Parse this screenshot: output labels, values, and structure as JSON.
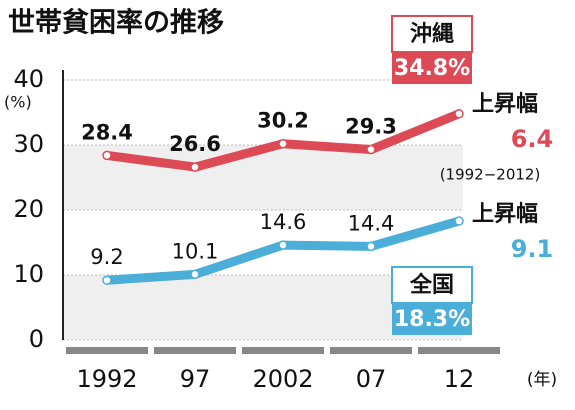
{
  "chart_data": {
    "type": "line",
    "title": "世帯貧困率の推移",
    "y_label": "(%)",
    "x_label": "(年)",
    "categories": [
      "1992",
      "97",
      "2002",
      "07",
      "12"
    ],
    "ylim": [
      0,
      40
    ],
    "yticks": [
      0,
      10,
      20,
      30,
      40
    ],
    "grid": true,
    "series": [
      {
        "name": "沖縄",
        "color": "#dc4b55",
        "values": [
          28.4,
          26.6,
          30.2,
          29.3,
          34.8
        ],
        "value_labels": [
          "28.4",
          "26.6",
          "30.2",
          "29.3",
          "34.8%"
        ]
      },
      {
        "name": "全国",
        "color": "#4aaed8",
        "values": [
          9.2,
          10.1,
          14.6,
          14.4,
          18.3
        ],
        "value_labels": [
          "9.2",
          "10.1",
          "14.6",
          "14.4",
          "18.3%"
        ]
      }
    ],
    "annotations": [
      {
        "text": "上昇幅",
        "value": 6.4,
        "note": "(1992−2012)"
      },
      {
        "text": "上昇幅",
        "value": 9.1
      }
    ]
  }
}
